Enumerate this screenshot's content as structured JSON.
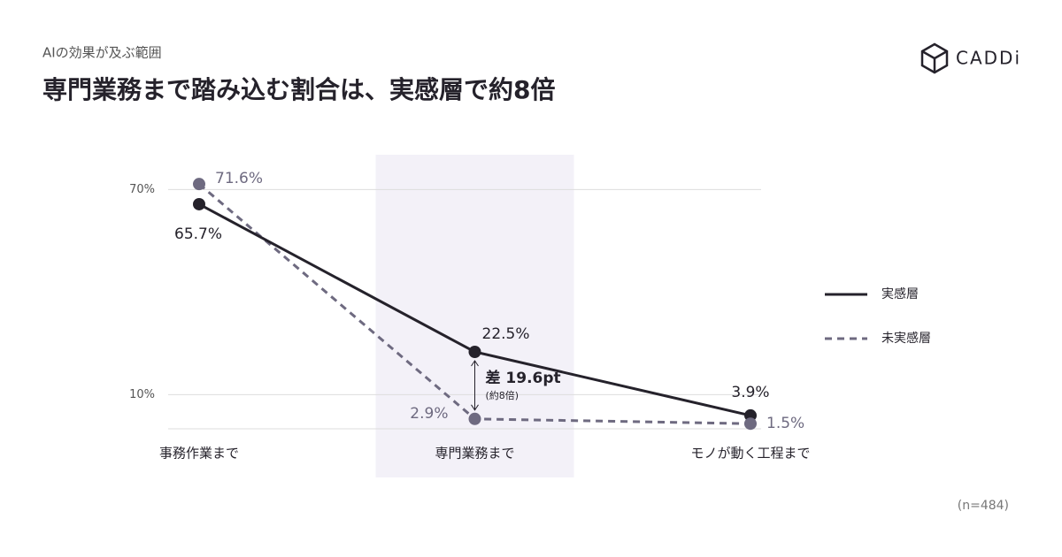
{
  "subtitle": "AIの効果が及ぶ範囲",
  "logo": "CADDi",
  "note": "(n=484)",
  "chart_data": {
    "type": "line",
    "title": "専門業務まで踏み込む割合は、実感層で約8倍",
    "categories": [
      "事務作業まで",
      "専門業務まで",
      "モノが動く工程まで"
    ],
    "series": [
      {
        "name": "実感層",
        "color": "#25222b",
        "dash": false,
        "values": [
          65.7,
          22.5,
          3.9
        ],
        "value_labels": [
          "65.7%",
          "22.5%",
          "3.9%"
        ]
      },
      {
        "name": "未実感層",
        "color": "#6e6a80",
        "dash": true,
        "values": [
          71.6,
          2.9,
          1.5
        ],
        "value_labels": [
          "71.6%",
          "2.9%",
          "1.5%"
        ]
      }
    ],
    "ylim": [
      0,
      75
    ],
    "yticks": [
      {
        "value": 10,
        "label": "10%"
      },
      {
        "value": 70,
        "label": "70%"
      }
    ],
    "grid": true,
    "legend": "right",
    "highlight_category": 1,
    "annotation": {
      "text": "差 19.6pt",
      "subtext": "(約8倍)"
    }
  }
}
